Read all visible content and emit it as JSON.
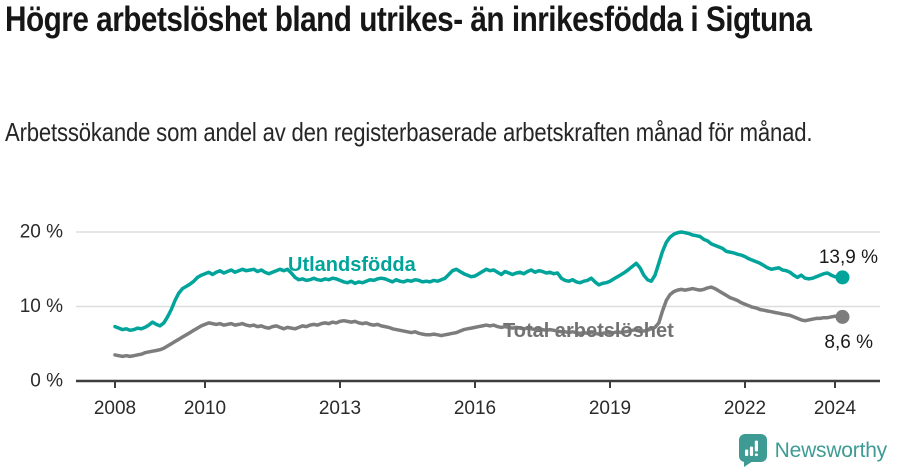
{
  "title": "Högre arbetslöshet bland utrikes- än inrikesfödda i Sigtuna",
  "subtitle": "Arbetssökande som andel av den registerbaserade arbetskraften månad för månad.",
  "branding": {
    "logo_text": "Newsworthy",
    "logo_icon": "newsworthy-speech-bubble-bar-chart-icon",
    "logo_color": "#3E9B94"
  },
  "colors": {
    "accent_teal": "#00a49b",
    "line_gray": "#7d7d7d",
    "series_label_gray": "#737373",
    "grid": "#dddddd",
    "axis": "#3d3d3d",
    "text_dark": "#1a1a1a",
    "background": "#ffffff"
  },
  "chart_data": {
    "type": "line",
    "title": "Högre arbetslöshet bland utrikes- än inrikesfödda i Sigtuna",
    "subtitle": "Arbetssökande som andel av den registerbaserade arbetskraften månad för månad.",
    "x_unit": "month",
    "x_start": "2008-01",
    "x_end": "2024-03",
    "x_ticks": [
      2008,
      2010,
      2013,
      2016,
      2019,
      2022,
      2024
    ],
    "x_tick_labels": [
      "2008",
      "2010",
      "2013",
      "2016",
      "2019",
      "2022",
      "2024"
    ],
    "y_ticks": [
      0,
      10,
      20
    ],
    "y_tick_labels": [
      "0 %",
      "10 %",
      "20 %"
    ],
    "ylim": [
      0,
      22
    ],
    "grid": "horizontal",
    "legend_position": "inline-labels",
    "series": [
      {
        "name": "Utlandsfödda",
        "color": "#00a49b",
        "end_label": "13,9 %",
        "end_value": 13.9,
        "values": [
          7.3,
          7.1,
          6.9,
          7.0,
          6.8,
          6.9,
          7.1,
          7.0,
          7.2,
          7.5,
          7.9,
          7.6,
          7.4,
          7.8,
          8.6,
          9.6,
          10.8,
          11.8,
          12.4,
          12.7,
          13.0,
          13.4,
          13.9,
          14.2,
          14.4,
          14.6,
          14.3,
          14.6,
          14.8,
          14.5,
          14.7,
          14.9,
          14.6,
          14.8,
          15.0,
          14.8,
          14.9,
          15.0,
          14.7,
          14.9,
          14.6,
          14.4,
          14.6,
          14.8,
          15.0,
          14.8,
          15.0,
          14.5,
          13.9,
          13.6,
          13.7,
          13.5,
          13.6,
          13.8,
          13.6,
          13.5,
          13.7,
          13.6,
          13.8,
          13.7,
          13.5,
          13.3,
          13.2,
          13.4,
          13.1,
          13.3,
          13.2,
          13.4,
          13.6,
          13.5,
          13.7,
          13.8,
          13.7,
          13.5,
          13.3,
          13.6,
          13.4,
          13.3,
          13.5,
          13.4,
          13.6,
          13.5,
          13.3,
          13.4,
          13.3,
          13.5,
          13.4,
          13.6,
          13.8,
          14.3,
          14.8,
          15.0,
          14.7,
          14.4,
          14.2,
          14.0,
          14.1,
          14.4,
          14.7,
          15.0,
          14.8,
          14.9,
          14.6,
          14.3,
          14.7,
          14.5,
          14.3,
          14.5,
          14.6,
          14.4,
          14.7,
          14.9,
          14.6,
          14.8,
          14.7,
          14.5,
          14.6,
          14.4,
          14.5,
          13.8,
          13.5,
          13.4,
          13.6,
          13.3,
          13.2,
          13.4,
          13.5,
          13.8,
          13.3,
          12.9,
          13.1,
          13.2,
          13.4,
          13.7,
          14.0,
          14.3,
          14.6,
          15.0,
          15.4,
          15.8,
          15.2,
          14.2,
          13.6,
          13.4,
          14.2,
          15.8,
          17.4,
          18.6,
          19.3,
          19.7,
          19.9,
          20.0,
          19.9,
          19.8,
          19.6,
          19.5,
          19.4,
          19.0,
          18.8,
          18.4,
          18.2,
          18.0,
          17.8,
          17.4,
          17.3,
          17.2,
          17.0,
          16.9,
          16.7,
          16.4,
          16.2,
          16.0,
          15.8,
          15.5,
          15.2,
          15.0,
          15.1,
          15.2,
          14.9,
          14.8,
          14.6,
          14.2,
          13.9,
          14.2,
          13.8,
          13.7,
          13.8,
          14.0,
          14.2,
          14.4,
          14.5,
          14.2,
          14.0,
          13.9,
          13.9
        ]
      },
      {
        "name": "Total arbetslöshet",
        "color": "#7d7d7d",
        "end_label": "8,6 %",
        "end_value": 8.6,
        "values": [
          3.5,
          3.4,
          3.3,
          3.4,
          3.3,
          3.4,
          3.5,
          3.6,
          3.8,
          3.9,
          4.0,
          4.1,
          4.2,
          4.4,
          4.7,
          5.0,
          5.3,
          5.6,
          5.9,
          6.2,
          6.5,
          6.8,
          7.1,
          7.4,
          7.6,
          7.8,
          7.7,
          7.6,
          7.7,
          7.5,
          7.6,
          7.7,
          7.5,
          7.6,
          7.7,
          7.5,
          7.4,
          7.5,
          7.3,
          7.4,
          7.2,
          7.1,
          7.3,
          7.4,
          7.2,
          7.0,
          7.2,
          7.1,
          7.0,
          7.2,
          7.4,
          7.3,
          7.5,
          7.6,
          7.5,
          7.7,
          7.8,
          7.7,
          7.9,
          7.8,
          8.0,
          8.1,
          8.0,
          7.9,
          8.0,
          7.8,
          7.7,
          7.8,
          7.6,
          7.5,
          7.6,
          7.4,
          7.3,
          7.2,
          7.0,
          6.9,
          6.8,
          6.7,
          6.6,
          6.5,
          6.6,
          6.4,
          6.3,
          6.2,
          6.2,
          6.3,
          6.2,
          6.1,
          6.2,
          6.3,
          6.4,
          6.5,
          6.7,
          6.9,
          7.0,
          7.1,
          7.2,
          7.3,
          7.4,
          7.5,
          7.4,
          7.5,
          7.3,
          7.2,
          7.3,
          7.2,
          7.1,
          7.2,
          7.1,
          7.0,
          7.1,
          7.0,
          6.9,
          7.0,
          6.9,
          6.8,
          6.9,
          6.8,
          6.7,
          6.6,
          6.6,
          6.5,
          6.6,
          6.5,
          6.4,
          6.5,
          6.4,
          6.5,
          6.4,
          6.3,
          6.4,
          6.5,
          6.4,
          6.5,
          6.6,
          6.5,
          6.6,
          6.7,
          6.8,
          6.9,
          6.8,
          6.7,
          6.8,
          7.0,
          7.2,
          7.8,
          9.4,
          10.8,
          11.6,
          12.0,
          12.2,
          12.3,
          12.2,
          12.3,
          12.4,
          12.3,
          12.2,
          12.3,
          12.5,
          12.6,
          12.4,
          12.1,
          11.8,
          11.5,
          11.2,
          11.0,
          10.8,
          10.5,
          10.3,
          10.1,
          9.9,
          9.8,
          9.6,
          9.5,
          9.4,
          9.3,
          9.2,
          9.1,
          9.0,
          8.9,
          8.8,
          8.6,
          8.4,
          8.2,
          8.1,
          8.2,
          8.3,
          8.4,
          8.4,
          8.5,
          8.5,
          8.6,
          8.7,
          8.6,
          8.6
        ]
      }
    ]
  }
}
